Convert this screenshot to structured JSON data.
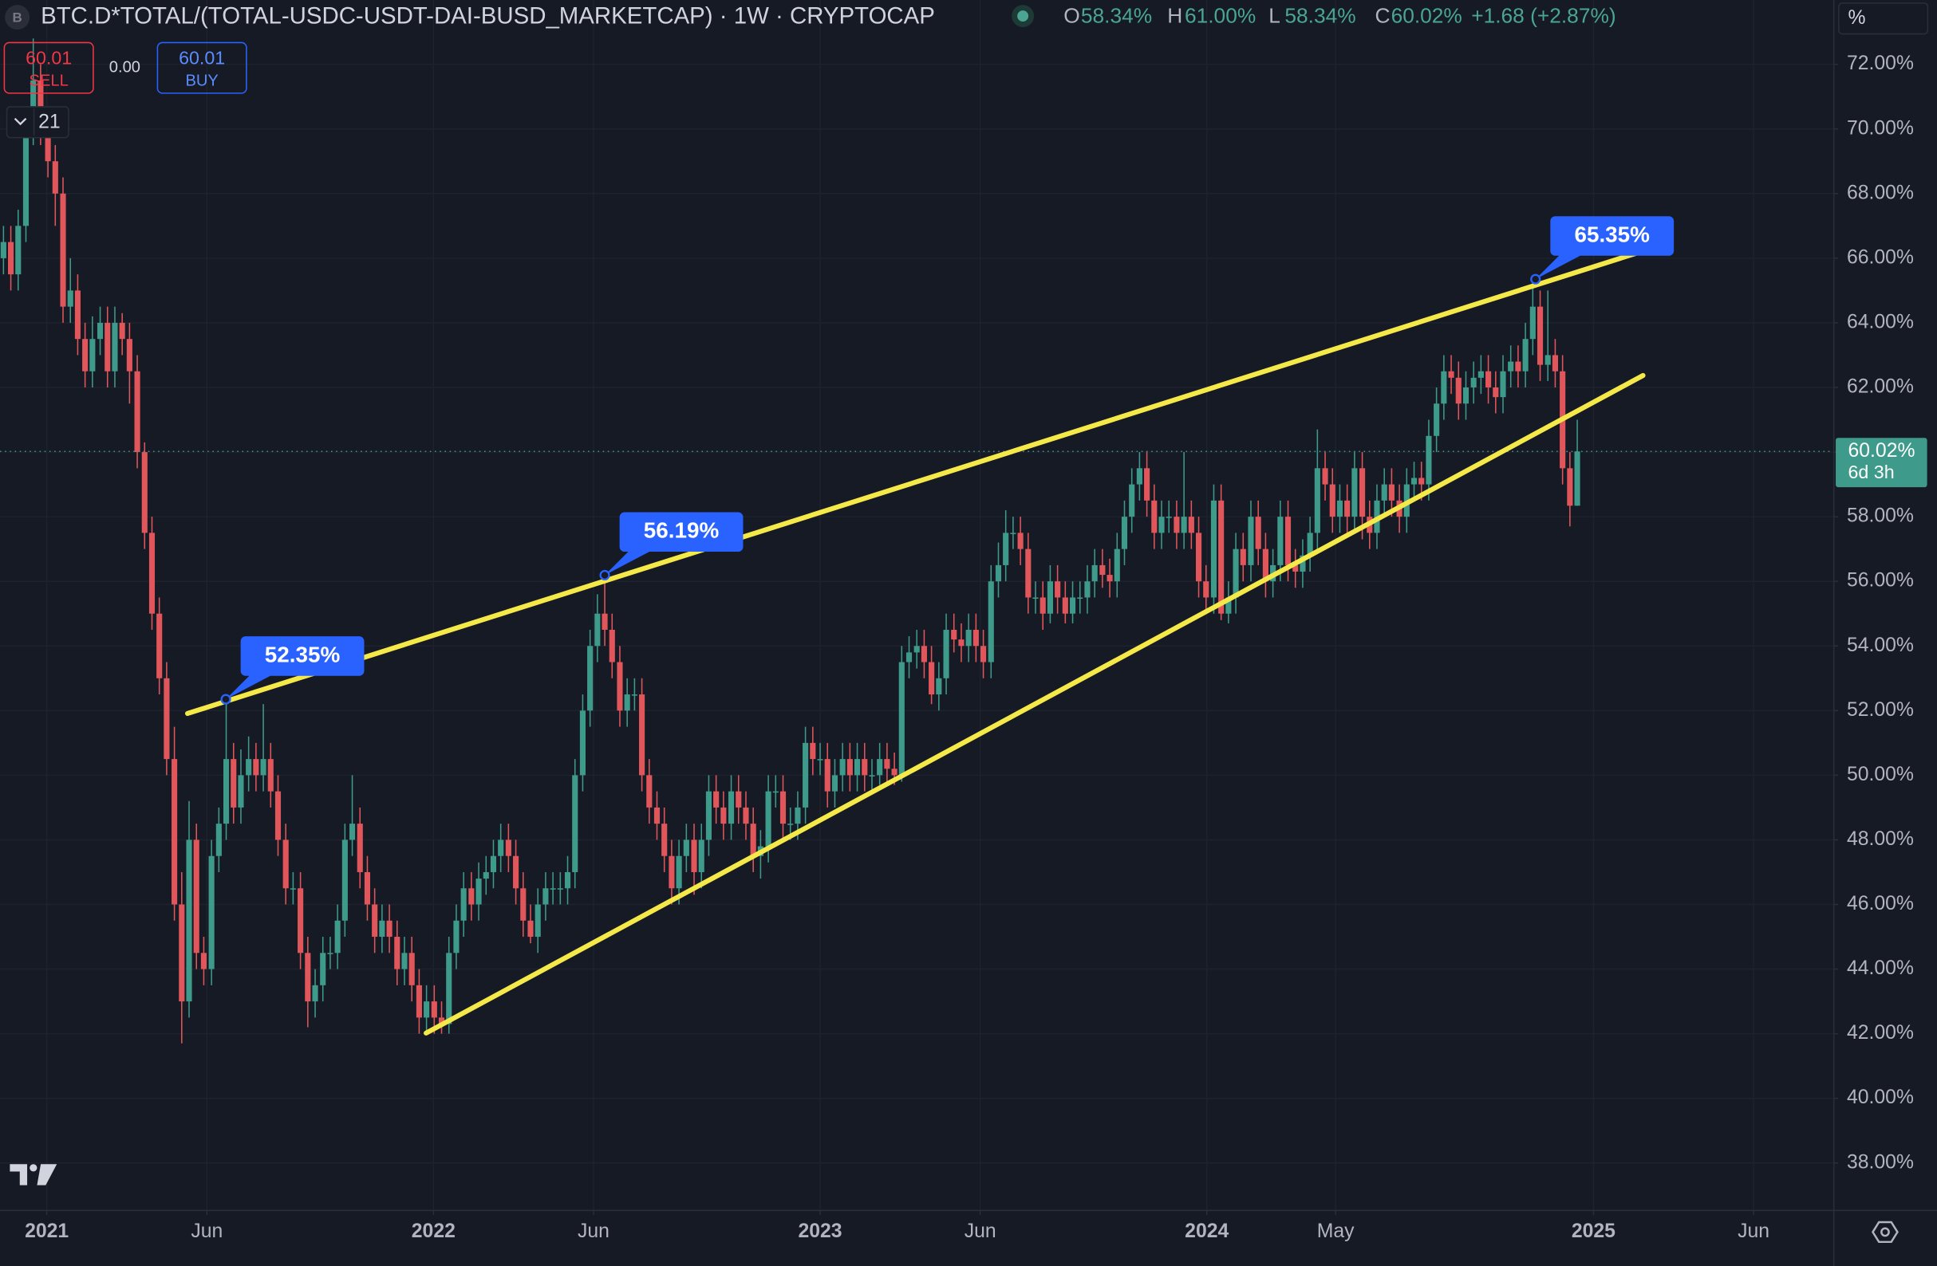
{
  "chart_data": {
    "type": "candlestick",
    "title": "BTC.D*TOTAL/(TOTAL-USDC-USDT-DAI-BUSD_MARKETCAP) · 1W · CRYPTOCAP",
    "ohlc": [
      {
        "key": "O",
        "text": "58.34%"
      },
      {
        "key": "H",
        "text": "61.00%"
      },
      {
        "key": "L",
        "text": "58.34%"
      },
      {
        "key": "C",
        "text": "60.02%"
      }
    ],
    "change": "+1.68 (+2.87%)",
    "trade": {
      "sell_price": "60.01",
      "sell_label": "SELL",
      "spread": "0.00",
      "buy_price": "60.01",
      "buy_label": "BUY"
    },
    "indicators_count": 21,
    "unit_label": "%",
    "last_price_label": "60.02%",
    "countdown": "6d 3h",
    "up_color": "#3e9a8a",
    "down_color": "#e0565b",
    "grid": true,
    "xlim": [
      2020.879,
      2025.62
    ],
    "xticks": [
      2021,
      {
        "value": 2021.414,
        "label": "Jun"
      },
      2022,
      {
        "value": 2022.414,
        "label": "Jun"
      },
      2023,
      {
        "value": 2023.414,
        "label": "Jun"
      },
      2024,
      {
        "value": 2024.333,
        "label": "May"
      },
      2025,
      {
        "value": 2025.414,
        "label": "Jun"
      }
    ],
    "ylim": [
      36.55,
      73.99
    ],
    "yticks": [
      {
        "value": 38,
        "label": "38.00%"
      },
      {
        "value": 40,
        "label": "40.00%"
      },
      {
        "value": 42,
        "label": "42.00%"
      },
      {
        "value": 44,
        "label": "44.00%"
      },
      {
        "value": 46,
        "label": "46.00%"
      },
      {
        "value": 48,
        "label": "48.00%"
      },
      {
        "value": 50,
        "label": "50.00%"
      },
      {
        "value": 52,
        "label": "52.00%"
      },
      {
        "value": 54,
        "label": "54.00%"
      },
      {
        "value": 56,
        "label": "56.00%"
      },
      {
        "value": 58,
        "label": "58.00%"
      },
      {
        "value": 60,
        "label": "60.00%"
      },
      {
        "value": 62,
        "label": "62.00%"
      },
      {
        "value": 64,
        "label": "64.00%"
      },
      {
        "value": 66,
        "label": "66.00%"
      },
      {
        "value": 68,
        "label": "68.00%"
      },
      {
        "value": 70,
        "label": "70.00%"
      },
      {
        "value": 72,
        "label": "72.00%"
      }
    ],
    "x": [
      2020.888,
      2020.907,
      2020.926,
      2020.946,
      2020.965,
      2020.984,
      2021.003,
      2021.022,
      2021.042,
      2021.061,
      2021.08,
      2021.099,
      2021.118,
      2021.138,
      2021.157,
      2021.176,
      2021.195,
      2021.214,
      2021.234,
      2021.253,
      2021.272,
      2021.291,
      2021.31,
      2021.33,
      2021.349,
      2021.368,
      2021.387,
      2021.406,
      2021.426,
      2021.445,
      2021.464,
      2021.483,
      2021.502,
      2021.522,
      2021.541,
      2021.56,
      2021.579,
      2021.598,
      2021.618,
      2021.637,
      2021.656,
      2021.675,
      2021.694,
      2021.714,
      2021.733,
      2021.752,
      2021.771,
      2021.79,
      2021.81,
      2021.829,
      2021.848,
      2021.867,
      2021.886,
      2021.906,
      2021.925,
      2021.944,
      2021.963,
      2021.982,
      2022.002,
      2022.021,
      2022.04,
      2022.059,
      2022.078,
      2022.098,
      2022.117,
      2022.136,
      2022.155,
      2022.174,
      2022.194,
      2022.213,
      2022.232,
      2022.251,
      2022.27,
      2022.29,
      2022.309,
      2022.328,
      2022.347,
      2022.366,
      2022.386,
      2022.405,
      2022.424,
      2022.443,
      2022.462,
      2022.482,
      2022.501,
      2022.52,
      2022.539,
      2022.558,
      2022.578,
      2022.597,
      2022.616,
      2022.635,
      2022.654,
      2022.674,
      2022.693,
      2022.712,
      2022.731,
      2022.75,
      2022.77,
      2022.789,
      2022.808,
      2022.827,
      2022.846,
      2022.866,
      2022.885,
      2022.904,
      2022.923,
      2022.942,
      2022.962,
      2022.981,
      2023.0,
      2023.019,
      2023.038,
      2023.058,
      2023.077,
      2023.096,
      2023.115,
      2023.134,
      2023.154,
      2023.173,
      2023.192,
      2023.211,
      2023.23,
      2023.25,
      2023.269,
      2023.288,
      2023.307,
      2023.326,
      2023.346,
      2023.365,
      2023.384,
      2023.403,
      2023.422,
      2023.442,
      2023.461,
      2023.48,
      2023.499,
      2023.518,
      2023.538,
      2023.557,
      2023.576,
      2023.595,
      2023.614,
      2023.634,
      2023.653,
      2023.672,
      2023.691,
      2023.71,
      2023.73,
      2023.749,
      2023.768,
      2023.787,
      2023.806,
      2023.826,
      2023.845,
      2023.864,
      2023.883,
      2023.902,
      2023.922,
      2023.941,
      2023.96,
      2023.979,
      2023.998,
      2024.018,
      2024.037,
      2024.056,
      2024.075,
      2024.094,
      2024.114,
      2024.133,
      2024.152,
      2024.171,
      2024.19,
      2024.21,
      2024.229,
      2024.248,
      2024.267,
      2024.286,
      2024.306,
      2024.325,
      2024.344,
      2024.363,
      2024.382,
      2024.402,
      2024.421,
      2024.44,
      2024.459,
      2024.478,
      2024.498,
      2024.517,
      2024.536,
      2024.555,
      2024.574,
      2024.594,
      2024.613,
      2024.632,
      2024.651,
      2024.67,
      2024.69,
      2024.709,
      2024.728,
      2024.747,
      2024.766,
      2024.786,
      2024.805,
      2024.824,
      2024.843,
      2024.862,
      2024.882,
      2024.901,
      2024.92,
      2024.939,
      2024.958
    ],
    "open": [
      66,
      66.5,
      65.5,
      67,
      70,
      71.5,
      70,
      69,
      68,
      64.5,
      65,
      63.5,
      62.5,
      63.5,
      64,
      62.5,
      64,
      63.5,
      62.5,
      60,
      57.5,
      55,
      53,
      50.5,
      46,
      43,
      48,
      44.5,
      44,
      47.5,
      48.5,
      50.5,
      49,
      50,
      50.5,
      50,
      50.5,
      49.5,
      48,
      46.5,
      46.5,
      44.5,
      43,
      43.5,
      44.5,
      44.5,
      45.5,
      48,
      48.5,
      47,
      46,
      45,
      45.5,
      45,
      44,
      44.5,
      43.5,
      42.5,
      43,
      42.5,
      42.3,
      44.5,
      45.5,
      46.5,
      46,
      46.8,
      47,
      47.5,
      48,
      47.5,
      46.5,
      45.5,
      45,
      46,
      46.5,
      46.5,
      46.5,
      47,
      50,
      52,
      54,
      55,
      54.5,
      53.5,
      52,
      52.5,
      52.5,
      50,
      49,
      48.5,
      47.5,
      46.5,
      47.5,
      48,
      47,
      48,
      49.5,
      49,
      48.5,
      49.5,
      49,
      48.5,
      47.5,
      47.8,
      49.5,
      49.5,
      48.5,
      48.5,
      49,
      51,
      50.5,
      50.5,
      49.5,
      50,
      50.5,
      50,
      50.5,
      50,
      50,
      50.5,
      50.2,
      50,
      53.5,
      53.8,
      54,
      53.5,
      52.5,
      53,
      54.5,
      54.2,
      54,
      54.5,
      54,
      53.5,
      56,
      56.5,
      57.5,
      57.5,
      57,
      55.5,
      55.5,
      55,
      56,
      55.5,
      55,
      55.5,
      55.5,
      56,
      56.5,
      56.2,
      56,
      57,
      58,
      59,
      59.5,
      58.5,
      57.5,
      58,
      58,
      57.5,
      58,
      57.5,
      56,
      55.5,
      58.5,
      55,
      55.5,
      57,
      56.5,
      58,
      57,
      56,
      56.5,
      58,
      56.5,
      56.3,
      56.8,
      57.5,
      59.5,
      59,
      58,
      58.5,
      58,
      59.5,
      58,
      57.5,
      58.5,
      59,
      58.5,
      58,
      59,
      59.2,
      59,
      60.5,
      61.5,
      62.5,
      62.3,
      61.5,
      62,
      62.3,
      62.5,
      62,
      61.7,
      62.5,
      62.8,
      62.5,
      63.5,
      64.5,
      62.7,
      63,
      62.5,
      59.5,
      58.34
    ],
    "high": [
      67,
      67,
      67.5,
      70.5,
      72.8,
      72,
      70.5,
      69.5,
      68.5,
      66,
      65.5,
      64,
      64.2,
      64.5,
      64.5,
      64.5,
      64.3,
      64,
      63,
      60.3,
      58,
      55.5,
      53.5,
      51.5,
      47,
      49.2,
      48.5,
      45,
      48,
      49,
      52.35,
      51,
      50.8,
      51.2,
      51,
      52.2,
      51,
      50,
      48.5,
      47,
      47,
      45,
      44,
      45,
      45,
      46,
      48.5,
      50,
      49,
      47.5,
      46.5,
      46,
      46,
      45.5,
      45,
      45,
      44,
      43.5,
      43.5,
      43,
      45,
      46,
      47,
      47,
      47.3,
      47.5,
      48,
      48.5,
      48.5,
      48,
      47,
      46,
      46.5,
      47,
      47,
      47,
      47.5,
      50.5,
      52.5,
      54.5,
      55.6,
      56.19,
      55,
      54,
      53,
      53,
      53,
      50.5,
      49.5,
      49,
      48,
      48,
      48.5,
      48.5,
      48.5,
      50,
      50,
      49.5,
      50,
      50,
      49.5,
      49,
      48.3,
      50,
      50,
      50,
      49,
      49.5,
      51.5,
      51.5,
      51,
      51,
      50.5,
      51,
      51,
      51,
      51,
      50.5,
      51,
      51,
      50.7,
      54,
      54.3,
      54.5,
      54.5,
      54,
      53.5,
      55,
      55,
      54.7,
      55,
      55,
      54.5,
      56.5,
      57.2,
      58.2,
      58,
      58,
      57.5,
      56,
      56,
      56.5,
      56.5,
      56,
      56,
      56,
      56.5,
      57,
      57,
      56.7,
      57.5,
      58.5,
      59.5,
      60,
      60,
      59,
      58.5,
      58.5,
      58.5,
      60,
      58.5,
      58,
      56.5,
      59,
      59,
      56,
      57.5,
      57.5,
      58.5,
      58.5,
      57.5,
      57,
      58.5,
      58.5,
      57,
      57.3,
      58,
      60.7,
      60,
      59.5,
      59,
      59,
      60,
      60,
      58.5,
      59,
      59.5,
      59.5,
      59,
      59.5,
      59.7,
      59.7,
      61,
      62,
      63,
      63,
      62.8,
      62.5,
      62.8,
      63,
      63,
      62.5,
      63,
      63.3,
      63.3,
      64,
      65.35,
      65,
      65,
      63.5,
      63,
      60,
      61
    ],
    "low": [
      65.5,
      65,
      65,
      66.5,
      69.5,
      69.5,
      68.5,
      67,
      64,
      64,
      63,
      62,
      62,
      63,
      62,
      62,
      63,
      61.5,
      59.5,
      57,
      54.5,
      52.5,
      50,
      45.5,
      41.7,
      42.5,
      44,
      43.5,
      43.5,
      47,
      48,
      48.5,
      48.5,
      49.5,
      49.5,
      49.5,
      49,
      47.5,
      46,
      46,
      44,
      42.2,
      42.5,
      43,
      44,
      44,
      45,
      47.5,
      46.5,
      45.5,
      44.5,
      44.5,
      44.5,
      43.5,
      43.5,
      43,
      42,
      42,
      42,
      42,
      42,
      44,
      45,
      45.5,
      45.5,
      46.3,
      46.5,
      47,
      47,
      46,
      45,
      44.8,
      44.5,
      45.5,
      46,
      46,
      46,
      46.5,
      49.5,
      51.5,
      53.5,
      54,
      53,
      51.5,
      51.5,
      52,
      49.5,
      48.5,
      48,
      47,
      46,
      46,
      47,
      46.3,
      46.5,
      47.5,
      48.5,
      48,
      48,
      48.5,
      48,
      47,
      46.8,
      47.3,
      49,
      48,
      48,
      48,
      48.5,
      50,
      50,
      49,
      49,
      49.5,
      49.5,
      49.5,
      49.5,
      49.5,
      49.7,
      49.8,
      49.7,
      49.8,
      53,
      53.3,
      53,
      52.2,
      52,
      52.5,
      53.8,
      53.5,
      53.5,
      53.5,
      53,
      53,
      55.5,
      56,
      57,
      56.5,
      55,
      55,
      54.5,
      54.7,
      55,
      54.7,
      54.7,
      55,
      55,
      55.5,
      55.8,
      55.5,
      55.5,
      56.5,
      57.5,
      58.5,
      58,
      57,
      57,
      57.5,
      57,
      57,
      57,
      55.5,
      55,
      55,
      54.8,
      54.7,
      55,
      56,
      56,
      56.5,
      55.5,
      55.5,
      56,
      56,
      55.8,
      55.8,
      56.3,
      57,
      58.5,
      57.5,
      57.5,
      57.5,
      57.5,
      57.3,
      57,
      57,
      58,
      58,
      57.5,
      57.5,
      58.5,
      58.5,
      58.5,
      60,
      61,
      61.8,
      61,
      61,
      61.5,
      61.8,
      61.5,
      61.2,
      61.2,
      62,
      62,
      62,
      63,
      62.2,
      62.2,
      62,
      59,
      57.7,
      58.34
    ],
    "close": [
      66.5,
      65.5,
      67,
      70,
      71.5,
      70,
      69,
      68,
      64.5,
      65,
      63.5,
      62.5,
      63.5,
      64,
      62.5,
      64,
      63.5,
      62.5,
      60,
      57.5,
      55,
      53,
      50.5,
      46,
      43,
      48,
      44.5,
      44,
      47.5,
      48.5,
      50.5,
      49,
      50,
      50.5,
      50,
      50.5,
      49.5,
      48,
      46.5,
      46.5,
      44.5,
      43,
      43.5,
      44.5,
      44.5,
      45.5,
      48,
      48.5,
      47,
      46,
      45,
      45.5,
      45,
      44,
      44.5,
      43.5,
      42.5,
      43,
      42.5,
      42.3,
      44.5,
      45.5,
      46.5,
      46,
      46.8,
      47,
      47.5,
      48,
      47.5,
      46.5,
      45.5,
      45,
      46,
      46.5,
      46.5,
      46.5,
      47,
      50,
      52,
      54,
      55,
      54.5,
      53.5,
      52,
      52.5,
      52.5,
      50,
      49,
      48.5,
      47.5,
      46.5,
      47.5,
      48,
      47,
      48,
      49.5,
      49,
      48.5,
      49.5,
      49,
      48.5,
      47.5,
      47.8,
      49.5,
      49.5,
      48.5,
      48.5,
      49,
      51,
      50.5,
      50.5,
      49.5,
      50,
      50.5,
      50,
      50.5,
      50,
      50,
      50.5,
      50.2,
      50,
      53.5,
      53.8,
      54,
      53.5,
      52.5,
      53,
      54.5,
      54.2,
      54,
      54.5,
      54,
      53.5,
      56,
      56.5,
      57.5,
      57.5,
      57,
      55.5,
      55.5,
      55,
      56,
      55.5,
      55,
      55.5,
      55.5,
      56,
      56.5,
      56.2,
      56,
      57,
      58,
      59,
      59.5,
      58.5,
      57.5,
      58,
      58,
      57.5,
      58,
      57.5,
      56,
      55.5,
      58.5,
      55,
      55.5,
      57,
      56.5,
      58,
      57,
      56,
      56.5,
      58,
      56.5,
      56.3,
      56.8,
      57.5,
      59.5,
      59,
      58,
      58.5,
      58,
      59.5,
      58,
      57.5,
      58.5,
      59,
      58.5,
      58,
      59,
      59.2,
      59,
      60.5,
      61.5,
      62.5,
      62.3,
      61.5,
      62,
      62.3,
      62.5,
      62,
      61.7,
      62.5,
      62.8,
      62.5,
      63.5,
      64.5,
      62.7,
      63,
      62.5,
      59.5,
      58.34,
      60.02
    ],
    "trendline_color": "#f5e94a",
    "trendlines": [
      {
        "x": [
          2021.364,
          2025.112
        ],
        "y": [
          51.91,
          66.16
        ]
      },
      {
        "x": [
          2021.981,
          2025.128
        ],
        "y": [
          42.02,
          62.37
        ]
      }
    ],
    "annotation_color": "#2962ff",
    "annotations": [
      {
        "x": 2021.463,
        "y": 52.35,
        "label": "52.35%"
      },
      {
        "x": 2022.443,
        "y": 56.19,
        "label": "56.19%"
      },
      {
        "x": 2024.85,
        "y": 65.35,
        "label": "65.35%"
      }
    ]
  }
}
